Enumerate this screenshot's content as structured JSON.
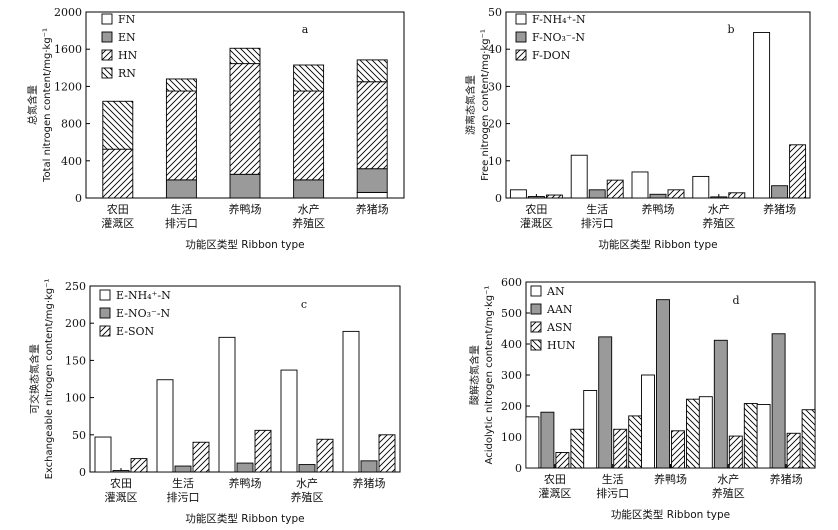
{
  "chart_data": [
    {
      "panel": "a",
      "type": "bar",
      "stacked": true,
      "ylabel_cn": "总氮含量",
      "ylabel": "Total nitrogen content/mg·kg⁻¹",
      "xlabel": "功能区类型 Ribbon type",
      "ylim": [
        0,
        2000
      ],
      "yticks": [
        0,
        400,
        800,
        1200,
        1600,
        2000
      ],
      "categories": [
        [
          "农田",
          "灌溉区"
        ],
        [
          "生活",
          "排污口"
        ],
        [
          "养鸭场"
        ],
        [
          "水产",
          "养殖区"
        ],
        [
          "养猪场"
        ]
      ],
      "series": [
        {
          "name": "FN",
          "values": [
            0,
            0,
            0,
            0,
            60
          ]
        },
        {
          "name": "EN",
          "values": [
            0,
            195,
            255,
            195,
            255
          ]
        },
        {
          "name": "HN",
          "values": [
            525,
            955,
            1190,
            955,
            935
          ]
        },
        {
          "name": "RN",
          "values": [
            515,
            130,
            165,
            280,
            235
          ]
        }
      ],
      "legend": "top-left"
    },
    {
      "panel": "b",
      "type": "bar",
      "ylabel_cn": "游离态氮含量",
      "ylabel": "Free nitrogen content/mg·kg⁻¹",
      "xlabel": "功能区类型 Ribbon type",
      "ylim": [
        0,
        50
      ],
      "yticks": [
        0,
        10,
        20,
        30,
        40,
        50
      ],
      "categories": [
        [
          "农田",
          "灌溉区"
        ],
        [
          "生活",
          "排污口"
        ],
        [
          "养鸭场"
        ],
        [
          "水产",
          "养殖区"
        ],
        [
          "养猪场"
        ]
      ],
      "series": [
        {
          "name": "F-NH₄⁺-N",
          "values": [
            2.2,
            11.5,
            7.0,
            5.8,
            44.5
          ]
        },
        {
          "name": "F-NO₃⁻-N",
          "values": [
            0.4,
            2.2,
            1.0,
            0.3,
            3.3
          ]
        },
        {
          "name": "F-DON",
          "values": [
            0.8,
            4.8,
            2.2,
            1.4,
            14.3
          ]
        }
      ],
      "legend": "top-left"
    },
    {
      "panel": "c",
      "type": "bar",
      "ylabel_cn": "可交换态氮含量",
      "ylabel": "Exchangeable nitrogen content/mg·kg⁻¹",
      "xlabel": "功能区类型 Ribbon type",
      "ylim": [
        0,
        250
      ],
      "yticks": [
        0,
        50,
        100,
        150,
        200,
        250
      ],
      "categories": [
        [
          "农田",
          "灌溉区"
        ],
        [
          "生活",
          "排污口"
        ],
        [
          "养鸭场"
        ],
        [
          "水产",
          "养殖区"
        ],
        [
          "养猪场"
        ]
      ],
      "series": [
        {
          "name": "E-NH₄⁺-N",
          "values": [
            47,
            124,
            181,
            137,
            189
          ]
        },
        {
          "name": "E-NO₃⁻-N",
          "values": [
            2,
            8,
            12,
            10,
            15
          ]
        },
        {
          "name": "E-SON",
          "values": [
            18,
            40,
            56,
            44,
            50
          ]
        }
      ],
      "legend": "top-left"
    },
    {
      "panel": "d",
      "type": "bar",
      "ylabel_cn": "酸解态氮含量",
      "ylabel": "Acidolytic nitrogen content/mg·kg⁻¹",
      "xlabel": "功能区类型 Ribbon type",
      "ylim": [
        0,
        600
      ],
      "yticks": [
        0,
        100,
        200,
        300,
        400,
        500,
        600
      ],
      "categories": [
        [
          "农田",
          "灌溉区"
        ],
        [
          "生活",
          "排污口"
        ],
        [
          "养鸭场"
        ],
        [
          "水产",
          "养殖区"
        ],
        [
          "养猪场"
        ]
      ],
      "series": [
        {
          "name": "AN",
          "values": [
            165,
            250,
            300,
            230,
            205
          ]
        },
        {
          "name": "AAN",
          "values": [
            180,
            423,
            543,
            412,
            433
          ]
        },
        {
          "name": "ASN",
          "values": [
            50,
            125,
            120,
            103,
            112
          ]
        },
        {
          "name": "HUN",
          "values": [
            125,
            168,
            222,
            208,
            188
          ]
        }
      ],
      "legend": "top-left"
    }
  ]
}
